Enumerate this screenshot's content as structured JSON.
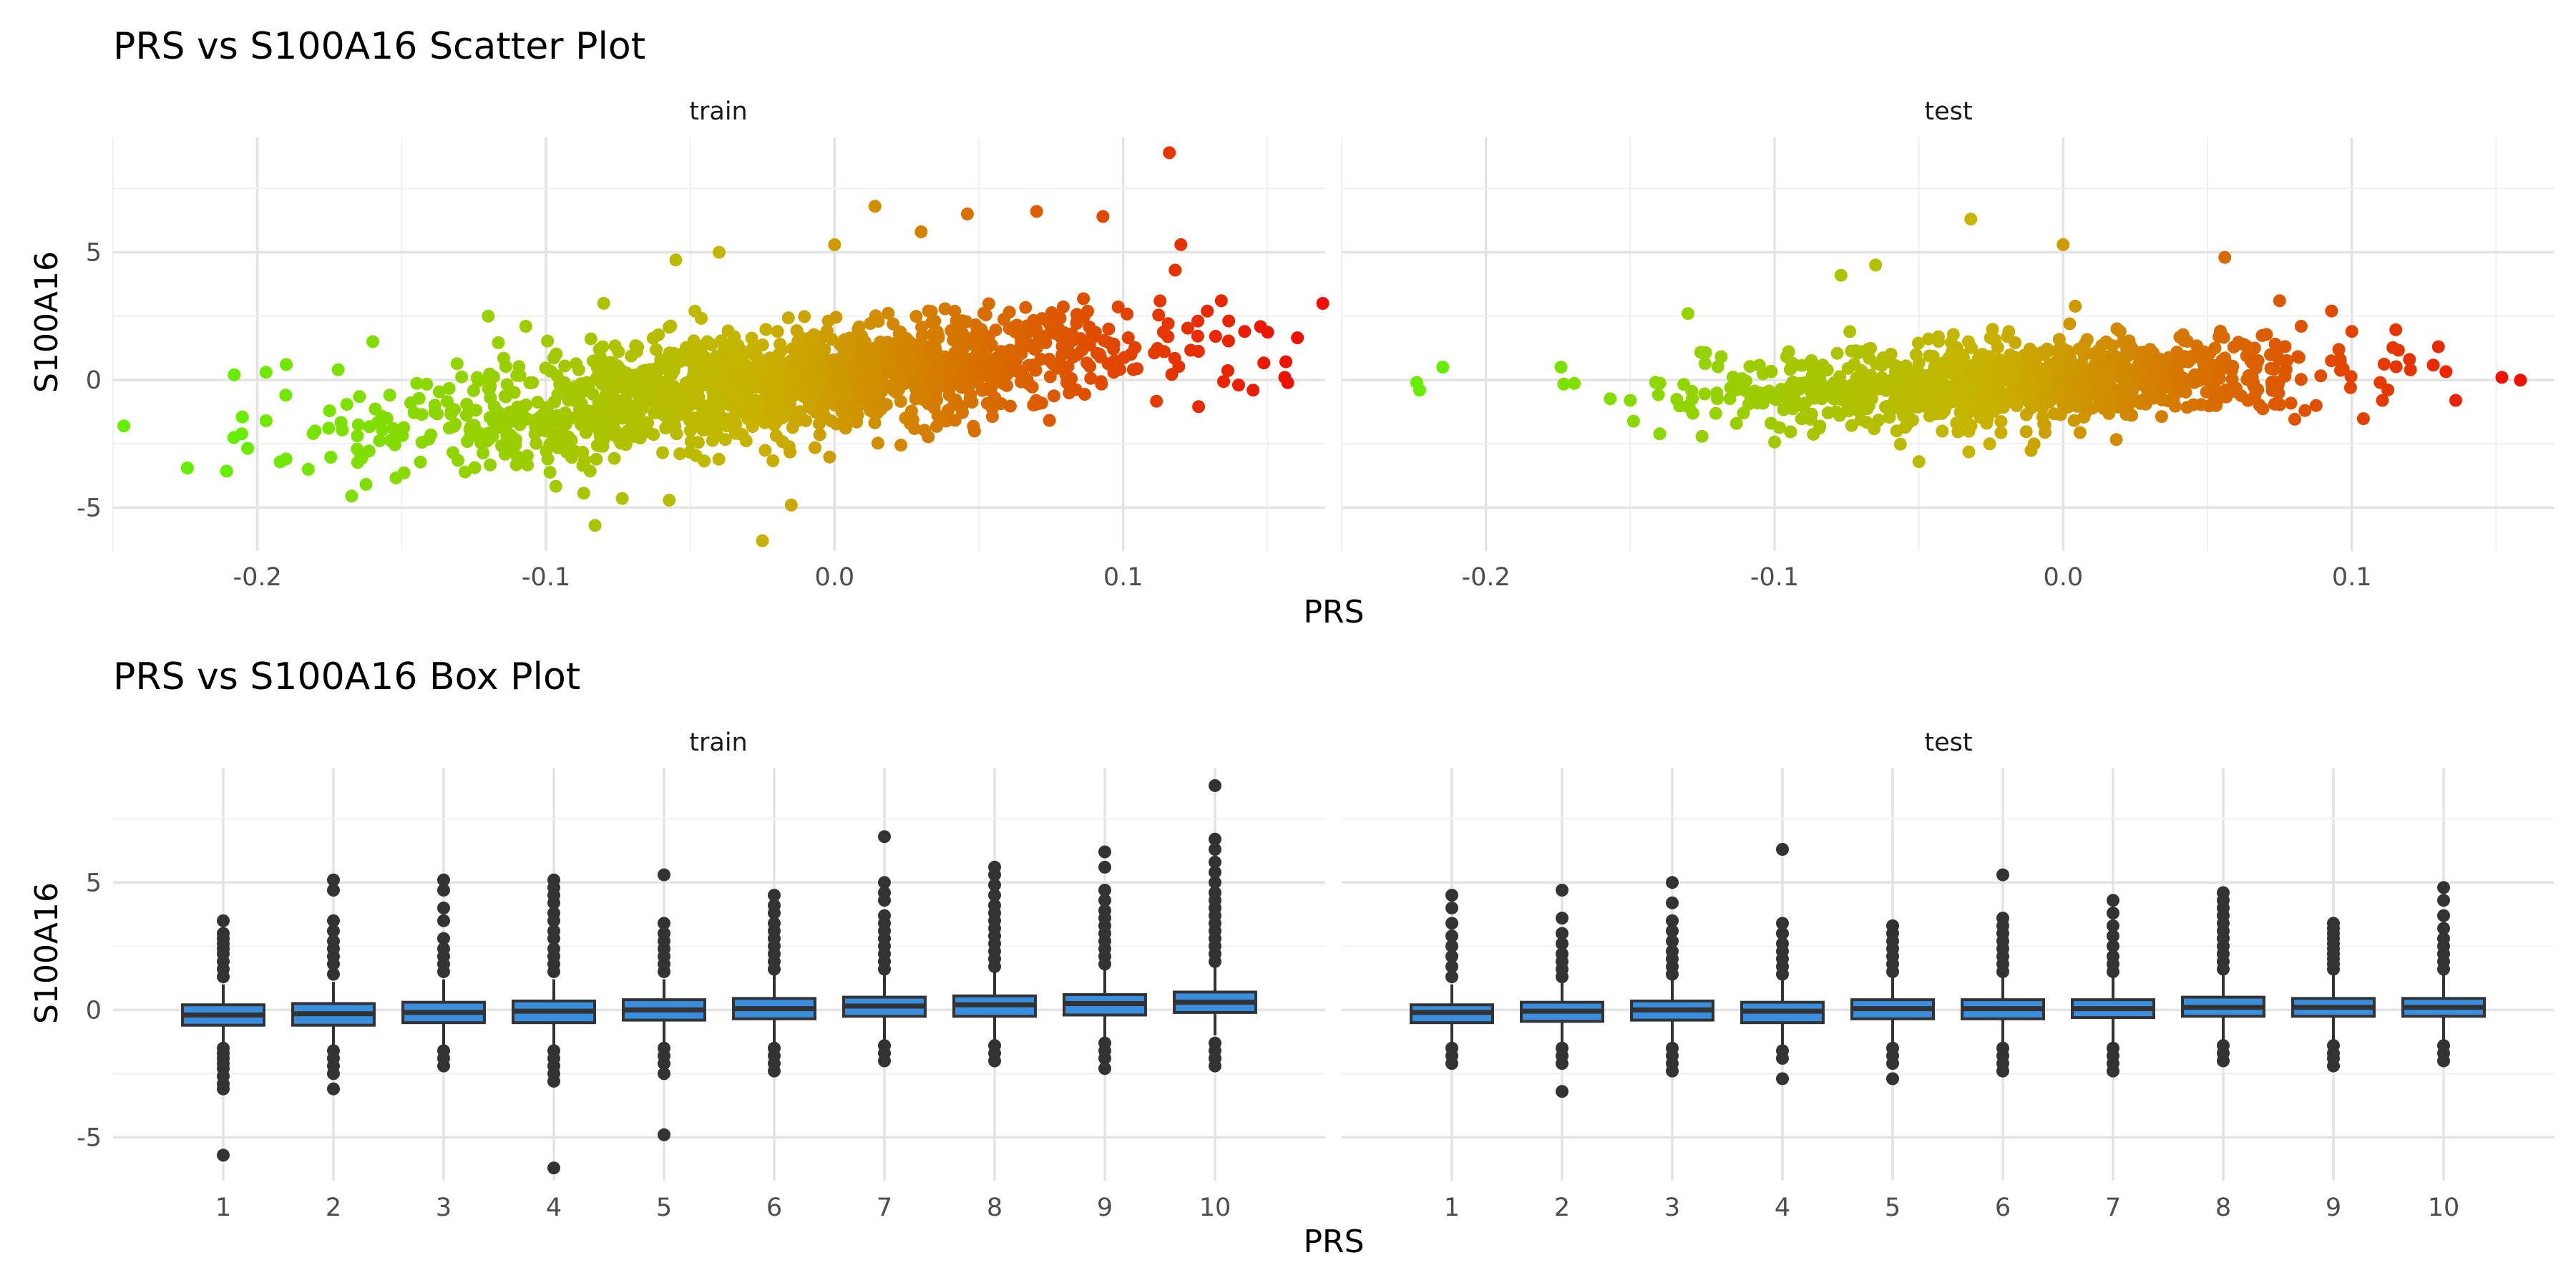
{
  "chart_data": [
    {
      "type": "scatter",
      "title": "PRS vs S100A16 Scatter Plot",
      "xlabel": "PRS",
      "ylabel": "S100A16",
      "panels": [
        "train",
        "test"
      ],
      "xlim": [
        -0.25,
        0.17
      ],
      "ylim": [
        -6.7,
        9.5
      ],
      "xticks": [
        "-0.2",
        "-0.1",
        "0.0",
        "0.1"
      ],
      "xtick_values": [
        -0.2,
        -0.1,
        0.0,
        0.1
      ],
      "yticks": [
        "-5",
        "0",
        "5"
      ],
      "ytick_values": [
        -5,
        0,
        5
      ],
      "grid": true,
      "color_scale": {
        "low": "#66ee00",
        "mid": "#c8b200",
        "high": "#ee1100",
        "variable": "PRS"
      },
      "density": {
        "train": {
          "x_range": [
            -0.15,
            0.11
          ],
          "y_spread": 1.0,
          "y_slope": 12,
          "count": 1600
        },
        "test": {
          "x_range": [
            -0.12,
            0.09
          ],
          "y_spread": 0.8,
          "y_slope": 5,
          "count": 1000
        }
      },
      "notable_points": {
        "train": [
          [
            -0.208,
            0.2
          ],
          [
            -0.197,
            -1.6
          ],
          [
            -0.197,
            0.3
          ],
          [
            -0.19,
            0.6
          ],
          [
            -0.18,
            -2.0
          ],
          [
            -0.172,
            0.4
          ],
          [
            -0.16,
            1.5
          ],
          [
            -0.12,
            2.5
          ],
          [
            -0.11,
            -3.0
          ],
          [
            -0.107,
            2.1
          ],
          [
            -0.083,
            -5.7
          ],
          [
            -0.08,
            3.0
          ],
          [
            -0.055,
            4.7
          ],
          [
            -0.04,
            5.0
          ],
          [
            -0.025,
            -6.3
          ],
          [
            -0.015,
            -4.9
          ],
          [
            0.0,
            5.3
          ],
          [
            0.014,
            6.8
          ],
          [
            0.03,
            5.8
          ],
          [
            0.046,
            6.5
          ],
          [
            0.07,
            6.6
          ],
          [
            0.093,
            6.4
          ],
          [
            0.116,
            8.9
          ],
          [
            0.12,
            5.3
          ],
          [
            0.118,
            4.3
          ],
          [
            0.134,
            3.1
          ],
          [
            0.14,
            -0.2
          ],
          [
            0.145,
            -0.4
          ],
          [
            0.156,
            0.1
          ]
        ],
        "test": [
          [
            -0.224,
            -0.1
          ],
          [
            -0.223,
            -0.4
          ],
          [
            -0.215,
            0.5
          ],
          [
            -0.174,
            0.5
          ],
          [
            -0.15,
            -0.8
          ],
          [
            -0.13,
            2.6
          ],
          [
            -0.077,
            4.1
          ],
          [
            -0.065,
            4.5
          ],
          [
            -0.05,
            -3.2
          ],
          [
            -0.032,
            6.3
          ],
          [
            0.0,
            5.3
          ],
          [
            0.056,
            4.8
          ],
          [
            0.075,
            3.1
          ],
          [
            0.093,
            2.7
          ],
          [
            0.1,
            1.9
          ],
          [
            0.12,
            0.8
          ],
          [
            0.13,
            1.3
          ],
          [
            0.136,
            -0.8
          ],
          [
            0.152,
            0.1
          ]
        ]
      }
    },
    {
      "type": "box",
      "title": "PRS vs S100A16 Box Plot",
      "xlabel": "PRS",
      "ylabel": "S100A16",
      "panels": [
        "train",
        "test"
      ],
      "categories": [
        "1",
        "2",
        "3",
        "4",
        "5",
        "6",
        "7",
        "8",
        "9",
        "10"
      ],
      "ylim": [
        -6.7,
        9.5
      ],
      "yticks": [
        "-5",
        "0",
        "5"
      ],
      "ytick_values": [
        -5,
        0,
        5
      ],
      "grid": true,
      "box_fill": "#3a8ee0",
      "series": [
        {
          "panel": "train",
          "boxes": [
            {
              "q1": -0.6,
              "median": -0.2,
              "q3": 0.2,
              "whisker_low": -1.3,
              "whisker_high": 1.0,
              "outliers_high": [
                1.3,
                1.6,
                1.9,
                2.2,
                2.4,
                2.6,
                2.8,
                3.0,
                3.5
              ],
              "outliers_low": [
                -1.5,
                -1.7,
                -1.9,
                -2.1,
                -2.3,
                -2.6,
                -2.9,
                -3.1,
                -5.7
              ]
            },
            {
              "q1": -0.6,
              "median": -0.15,
              "q3": 0.25,
              "whisker_low": -1.4,
              "whisker_high": 1.1,
              "outliers_high": [
                1.4,
                1.8,
                2.1,
                2.4,
                2.7,
                3.1,
                3.5,
                4.7,
                5.1
              ],
              "outliers_low": [
                -1.6,
                -1.9,
                -2.2,
                -2.5,
                -3.1
              ]
            },
            {
              "q1": -0.5,
              "median": -0.1,
              "q3": 0.3,
              "whisker_low": -1.4,
              "whisker_high": 1.2,
              "outliers_high": [
                1.5,
                1.8,
                2.1,
                2.4,
                2.8,
                3.5,
                4.0,
                4.7,
                5.1
              ],
              "outliers_low": [
                -1.6,
                -1.9,
                -2.2
              ]
            },
            {
              "q1": -0.5,
              "median": -0.05,
              "q3": 0.35,
              "whisker_low": -1.4,
              "whisker_high": 1.2,
              "outliers_high": [
                1.5,
                1.8,
                2.1,
                2.4,
                2.8,
                3.1,
                3.5,
                3.8,
                4.2,
                4.5,
                4.8,
                5.1
              ],
              "outliers_low": [
                -1.6,
                -1.9,
                -2.2,
                -2.5,
                -2.8,
                -6.2
              ]
            },
            {
              "q1": -0.4,
              "median": 0.0,
              "q3": 0.4,
              "whisker_low": -1.3,
              "whisker_high": 1.2,
              "outliers_high": [
                1.5,
                1.8,
                2.1,
                2.4,
                2.7,
                3.0,
                3.4,
                5.3
              ],
              "outliers_low": [
                -1.5,
                -1.8,
                -2.1,
                -2.5,
                -4.9
              ]
            },
            {
              "q1": -0.35,
              "median": 0.05,
              "q3": 0.45,
              "whisker_low": -1.3,
              "whisker_high": 1.4,
              "outliers_high": [
                1.6,
                1.9,
                2.2,
                2.5,
                2.8,
                3.1,
                3.4,
                3.8,
                4.1,
                4.5
              ],
              "outliers_low": [
                -1.5,
                -1.8,
                -2.1,
                -2.4
              ]
            },
            {
              "q1": -0.25,
              "median": 0.15,
              "q3": 0.5,
              "whisker_low": -1.2,
              "whisker_high": 1.4,
              "outliers_high": [
                1.6,
                1.9,
                2.2,
                2.5,
                2.8,
                3.1,
                3.4,
                3.7,
                4.3,
                4.6,
                5.0,
                6.8
              ],
              "outliers_low": [
                -1.4,
                -1.7,
                -2.0
              ]
            },
            {
              "q1": -0.25,
              "median": 0.2,
              "q3": 0.55,
              "whisker_low": -1.2,
              "whisker_high": 1.5,
              "outliers_high": [
                1.7,
                2.0,
                2.3,
                2.6,
                2.9,
                3.2,
                3.5,
                3.8,
                4.1,
                4.5,
                4.9,
                5.3,
                5.6
              ],
              "outliers_low": [
                -1.4,
                -1.7,
                -2.0
              ]
            },
            {
              "q1": -0.2,
              "median": 0.25,
              "q3": 0.6,
              "whisker_low": -1.1,
              "whisker_high": 1.6,
              "outliers_high": [
                1.8,
                2.1,
                2.4,
                2.7,
                3.0,
                3.3,
                3.6,
                3.9,
                4.3,
                4.7,
                5.6,
                6.2
              ],
              "outliers_low": [
                -1.3,
                -1.6,
                -1.9,
                -2.3
              ]
            },
            {
              "q1": -0.1,
              "median": 0.3,
              "q3": 0.7,
              "whisker_low": -1.0,
              "whisker_high": 1.7,
              "outliers_high": [
                1.9,
                2.2,
                2.5,
                2.8,
                3.1,
                3.4,
                3.7,
                4.0,
                4.3,
                4.6,
                5.0,
                5.4,
                5.8,
                6.3,
                6.7,
                8.8
              ],
              "outliers_low": [
                -1.3,
                -1.6,
                -1.9,
                -2.2
              ]
            }
          ]
        },
        {
          "panel": "test",
          "boxes": [
            {
              "q1": -0.5,
              "median": -0.1,
              "q3": 0.2,
              "whisker_low": -1.3,
              "whisker_high": 1.0,
              "outliers_high": [
                1.3,
                1.7,
                2.1,
                2.5,
                2.9,
                3.4,
                4.0,
                4.5
              ],
              "outliers_low": [
                -1.5,
                -1.8,
                -2.1
              ]
            },
            {
              "q1": -0.45,
              "median": -0.05,
              "q3": 0.3,
              "whisker_low": -1.3,
              "whisker_high": 1.1,
              "outliers_high": [
                1.3,
                1.6,
                1.9,
                2.2,
                2.6,
                3.0,
                3.6,
                4.7
              ],
              "outliers_low": [
                -1.5,
                -1.8,
                -2.1,
                -3.2
              ]
            },
            {
              "q1": -0.4,
              "median": 0.0,
              "q3": 0.35,
              "whisker_low": -1.3,
              "whisker_high": 1.2,
              "outliers_high": [
                1.4,
                1.7,
                2.0,
                2.3,
                2.7,
                3.1,
                3.5,
                4.2,
                5.0
              ],
              "outliers_low": [
                -1.5,
                -1.8,
                -2.1,
                -2.4
              ]
            },
            {
              "q1": -0.5,
              "median": -0.05,
              "q3": 0.3,
              "whisker_low": -1.4,
              "whisker_high": 1.2,
              "outliers_high": [
                1.4,
                1.7,
                2.0,
                2.3,
                2.6,
                3.0,
                3.4,
                6.3
              ],
              "outliers_low": [
                -1.6,
                -1.9,
                -2.7
              ]
            },
            {
              "q1": -0.35,
              "median": 0.05,
              "q3": 0.4,
              "whisker_low": -1.3,
              "whisker_high": 1.3,
              "outliers_high": [
                1.5,
                1.8,
                2.1,
                2.4,
                2.7,
                3.0,
                3.3
              ],
              "outliers_low": [
                -1.5,
                -1.8,
                -2.1,
                -2.7
              ]
            },
            {
              "q1": -0.35,
              "median": 0.05,
              "q3": 0.4,
              "whisker_low": -1.3,
              "whisker_high": 1.3,
              "outliers_high": [
                1.5,
                1.8,
                2.1,
                2.4,
                2.7,
                3.0,
                3.3,
                3.6,
                5.3
              ],
              "outliers_low": [
                -1.5,
                -1.8,
                -2.1,
                -2.4
              ]
            },
            {
              "q1": -0.3,
              "median": 0.05,
              "q3": 0.4,
              "whisker_low": -1.3,
              "whisker_high": 1.3,
              "outliers_high": [
                1.5,
                1.8,
                2.1,
                2.5,
                2.9,
                3.3,
                3.8,
                4.3
              ],
              "outliers_low": [
                -1.5,
                -1.8,
                -2.1,
                -2.4
              ]
            },
            {
              "q1": -0.25,
              "median": 0.1,
              "q3": 0.5,
              "whisker_low": -1.2,
              "whisker_high": 1.4,
              "outliers_high": [
                1.6,
                1.9,
                2.2,
                2.5,
                2.8,
                3.1,
                3.4,
                3.7,
                4.0,
                4.3,
                4.6
              ],
              "outliers_low": [
                -1.4,
                -1.7,
                -2.0
              ]
            },
            {
              "q1": -0.25,
              "median": 0.1,
              "q3": 0.45,
              "whisker_low": -1.2,
              "whisker_high": 1.4,
              "outliers_high": [
                1.6,
                1.8,
                2.0,
                2.2,
                2.4,
                2.6,
                2.8,
                3.0,
                3.2,
                3.4
              ],
              "outliers_low": [
                -1.4,
                -1.7,
                -1.9,
                -2.2
              ]
            },
            {
              "q1": -0.25,
              "median": 0.1,
              "q3": 0.45,
              "whisker_low": -1.2,
              "whisker_high": 1.4,
              "outliers_high": [
                1.6,
                1.9,
                2.2,
                2.5,
                2.8,
                3.2,
                3.7,
                4.3,
                4.8
              ],
              "outliers_low": [
                -1.4,
                -1.7,
                -2.0
              ]
            }
          ]
        }
      ]
    }
  ]
}
